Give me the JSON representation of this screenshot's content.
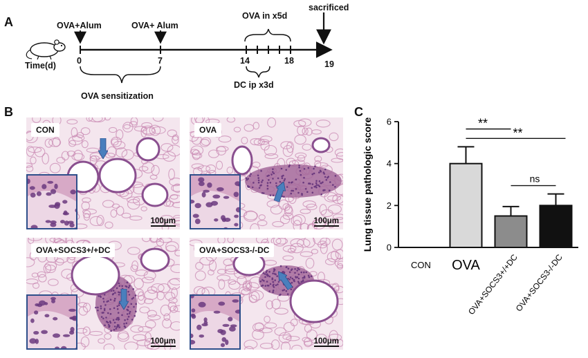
{
  "panel_a": {
    "letter": "A",
    "time_label": "Time(d)",
    "events": [
      {
        "label": "OVA+Alum"
      },
      {
        "label": "OVA+ Alum"
      },
      {
        "label": "OVA in x5d"
      },
      {
        "label": "sacrificed"
      }
    ],
    "day_labels": [
      "0",
      "7",
      "14",
      "18",
      "19"
    ],
    "sensitization_label": "OVA sensitization",
    "dc_label": "DC ip x3d"
  },
  "panel_b": {
    "letter": "B",
    "images": [
      {
        "label": "CON",
        "scale": "100μm"
      },
      {
        "label": "OVA",
        "scale": "100μm"
      },
      {
        "label": "OVA+SOCS3+/+DC",
        "scale": "100μm"
      },
      {
        "label": "OVA+SOCS3-/-DC",
        "scale": "100μm"
      }
    ],
    "colors": {
      "tissue": "#c98ab3",
      "background": "#f4e6ee",
      "nuclei": "#6b3a7f",
      "arrow": "#4a7fbd",
      "inset_border": "#2d4e8a"
    }
  },
  "panel_c": {
    "letter": "C",
    "significance": [
      "**",
      "**",
      "ns"
    ]
  },
  "chart_data": {
    "type": "bar",
    "title": "",
    "xlabel": "",
    "ylabel": "Lung tissue pathologic score",
    "ylim": [
      0,
      6
    ],
    "yticks": [
      "0",
      "2",
      "4",
      "6"
    ],
    "categories": [
      "CON",
      "OVA",
      "OVA+SOCS3+/+DC",
      "OVA+SOCS3-/-DC"
    ],
    "values": [
      0,
      4.0,
      1.5,
      2.0
    ],
    "errors": [
      0,
      0.8,
      0.45,
      0.55
    ],
    "bar_colors": [
      "#ffffff",
      "#d9d9d9",
      "#8c8c8c",
      "#111111"
    ]
  }
}
